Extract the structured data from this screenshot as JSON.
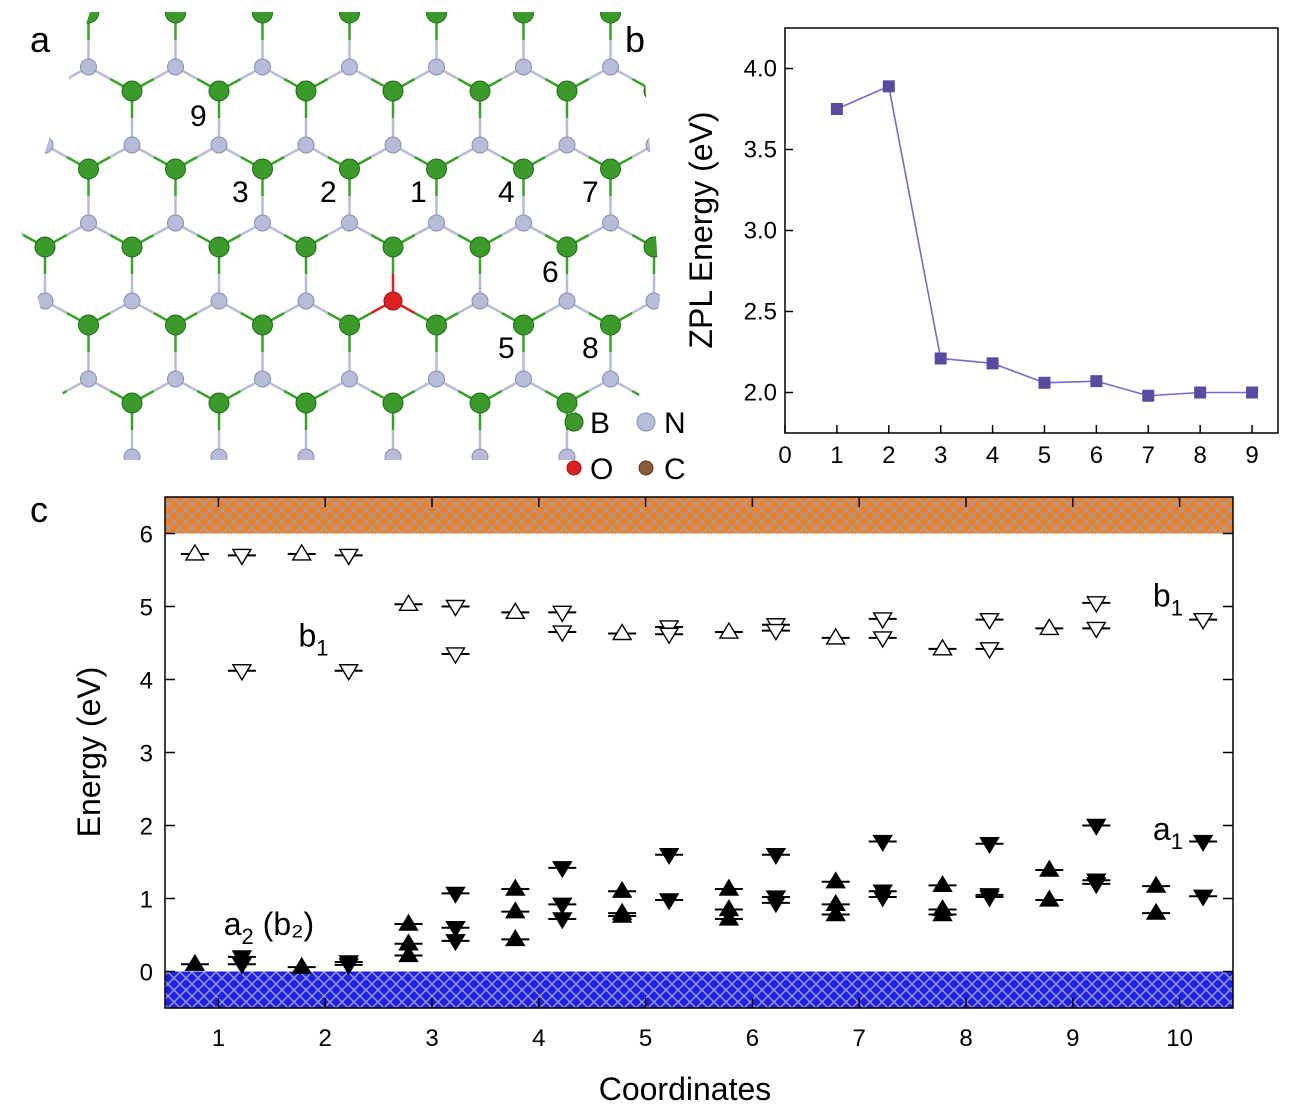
{
  "panels": {
    "a": "a",
    "b": "b",
    "c": "c"
  },
  "structure": {
    "site_labels": [
      {
        "id": "1",
        "text": "1"
      },
      {
        "id": "2",
        "text": "2"
      },
      {
        "id": "3",
        "text": "3"
      },
      {
        "id": "4",
        "text": "4"
      },
      {
        "id": "5",
        "text": "5"
      },
      {
        "id": "6",
        "text": "6"
      },
      {
        "id": "7",
        "text": "7"
      },
      {
        "id": "8",
        "text": "8"
      },
      {
        "id": "9",
        "text": "9"
      }
    ],
    "legend": [
      {
        "key": "B",
        "label": "B",
        "color": "#3a9a2a"
      },
      {
        "key": "N",
        "label": "N",
        "color": "#b8bcd8"
      },
      {
        "key": "O",
        "label": "O",
        "color": "#dd2020"
      },
      {
        "key": "C",
        "label": "C",
        "color": "#8a5a3a"
      }
    ]
  },
  "chart_data": [
    {
      "panel": "b",
      "type": "line",
      "x": [
        1,
        2,
        3,
        4,
        5,
        6,
        7,
        8,
        9
      ],
      "series": [
        {
          "name": "ZPL",
          "values": [
            3.75,
            3.89,
            2.21,
            2.18,
            2.06,
            2.07,
            1.98,
            2.0,
            2.0
          ],
          "color": "#5a4aa0"
        }
      ],
      "xlim": [
        0,
        9.5
      ],
      "ylim": [
        1.75,
        4.25
      ],
      "xticks": [
        "0",
        "1",
        "2",
        "3",
        "4",
        "5",
        "6",
        "7",
        "8",
        "9"
      ],
      "yticks": [
        "2.0",
        "2.5",
        "3.0",
        "3.5",
        "4.0"
      ],
      "xlabel": "",
      "ylabel": "ZPL Energy (eV)"
    },
    {
      "panel": "c",
      "type": "scatter",
      "xlim": [
        0.5,
        10.5
      ],
      "ylim": [
        -0.5,
        6.5
      ],
      "xticks": [
        "1",
        "2",
        "3",
        "4",
        "5",
        "6",
        "7",
        "8",
        "9",
        "10"
      ],
      "yticks": [
        "0",
        "1",
        "2",
        "3",
        "4",
        "5",
        "6"
      ],
      "xlabel": "Coordinates",
      "ylabel": "Energy (eV)",
      "bands": [
        {
          "name": "valence band",
          "from": -0.5,
          "to": 0.0,
          "color": "#1f1ff0"
        },
        {
          "name": "conduction band",
          "from": 6.0,
          "to": 6.5,
          "color": "#f08020"
        }
      ],
      "coordinates": [
        {
          "x": 1,
          "up_filled": [
            0.1
          ],
          "down_filled": [
            0.2,
            0.1
          ],
          "up_empty": [
            5.72
          ],
          "down_empty": [
            5.7,
            4.12
          ]
        },
        {
          "x": 2,
          "up_filled": [
            0.06
          ],
          "down_filled": [
            0.13,
            0.09
          ],
          "up_empty": [
            5.72
          ],
          "down_empty": [
            5.7,
            4.12
          ]
        },
        {
          "x": 3,
          "up_filled": [
            0.65,
            0.38,
            0.22
          ],
          "down_filled": [
            1.07,
            0.6,
            0.42
          ],
          "up_empty": [
            5.03
          ],
          "down_empty": [
            5.0,
            4.35
          ]
        },
        {
          "x": 4,
          "up_filled": [
            1.13,
            0.82,
            0.44
          ],
          "down_filled": [
            1.42,
            0.92,
            0.72
          ],
          "up_empty": [
            4.92
          ],
          "down_empty": [
            4.92,
            4.65
          ]
        },
        {
          "x": 5,
          "up_filled": [
            1.1,
            0.8,
            0.76
          ],
          "down_filled": [
            1.6,
            0.98
          ],
          "up_empty": [
            4.63
          ],
          "down_empty": [
            4.72,
            4.62
          ]
        },
        {
          "x": 6,
          "up_filled": [
            1.13,
            0.85,
            0.72
          ],
          "down_filled": [
            1.6,
            1.02,
            0.94
          ],
          "up_empty": [
            4.65
          ],
          "down_empty": [
            4.75,
            4.67
          ]
        },
        {
          "x": 7,
          "up_filled": [
            1.23,
            0.92,
            0.78
          ],
          "down_filled": [
            1.78,
            1.1,
            1.02
          ],
          "up_empty": [
            4.57
          ],
          "down_empty": [
            4.83,
            4.57
          ]
        },
        {
          "x": 8,
          "up_filled": [
            1.18,
            0.85,
            0.78
          ],
          "down_filled": [
            1.75,
            1.05,
            1.02
          ],
          "up_empty": [
            4.42
          ],
          "down_empty": [
            4.82,
            4.42
          ]
        },
        {
          "x": 9,
          "up_filled": [
            1.39,
            0.98
          ],
          "down_filled": [
            2.0,
            1.25,
            1.2
          ],
          "up_empty": [
            4.7
          ],
          "down_empty": [
            5.05,
            4.7
          ]
        },
        {
          "x": 10,
          "up_filled": [
            1.17,
            0.8
          ],
          "down_filled": [
            1.78,
            1.03
          ],
          "up_empty": [],
          "down_empty": [
            4.82
          ]
        }
      ],
      "annotations": [
        {
          "id": "b1-left",
          "main": "b",
          "sub": "1",
          "tail": "",
          "x": 1.75,
          "y": 4.45
        },
        {
          "id": "b1-right",
          "main": "b",
          "sub": "1",
          "tail": "",
          "x": 9.75,
          "y": 5.0
        },
        {
          "id": "a1",
          "main": "a",
          "sub": "1",
          "tail": "",
          "x": 9.75,
          "y": 1.8
        },
        {
          "id": "a2b2",
          "main": "a",
          "sub": "2",
          "tail": " (b₂)",
          "x": 1.05,
          "y": 0.5
        }
      ]
    }
  ]
}
